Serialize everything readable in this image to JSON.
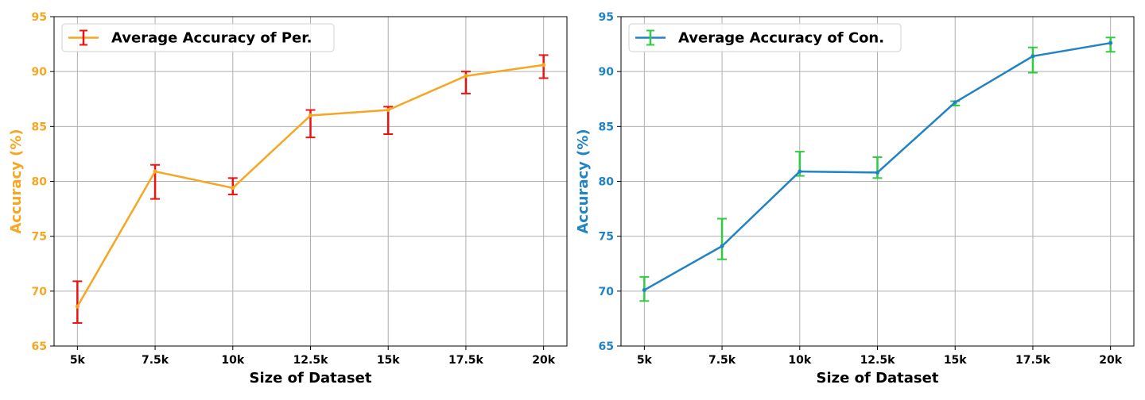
{
  "chart_data": [
    {
      "type": "line",
      "error_bars": true,
      "categories": [
        "5k",
        "7.5k",
        "10k",
        "12.5k",
        "15k",
        "17.5k",
        "20k"
      ],
      "series": [
        {
          "name": "Average Accuracy of Per.",
          "values": [
            68.6,
            80.9,
            79.4,
            86.0,
            86.5,
            89.6,
            90.6
          ],
          "error_low": [
            67.1,
            78.4,
            78.8,
            84.0,
            84.3,
            88.0,
            89.4
          ],
          "error_high": [
            70.9,
            81.5,
            80.3,
            86.5,
            86.8,
            90.0,
            91.5
          ]
        }
      ],
      "xlabel": "Size of Dataset",
      "ylabel": "Accuracy (%)",
      "ylim": [
        65,
        95
      ],
      "yticks": [
        65,
        70,
        75,
        80,
        85,
        90,
        95
      ],
      "grid": true,
      "legend": "upper-left",
      "colors": {
        "line": "#f5a623",
        "error": "#ee1111",
        "ytick": "#f5a623"
      }
    },
    {
      "type": "line",
      "error_bars": true,
      "categories": [
        "5k",
        "7.5k",
        "10k",
        "12.5k",
        "15k",
        "17.5k",
        "20k"
      ],
      "series": [
        {
          "name": "Average Accuracy of Con.",
          "values": [
            70.1,
            74.1,
            80.9,
            80.8,
            87.2,
            91.4,
            92.6
          ],
          "error_low": [
            69.1,
            72.9,
            80.5,
            80.3,
            86.9,
            89.9,
            91.8
          ],
          "error_high": [
            71.3,
            76.6,
            82.7,
            82.2,
            87.3,
            92.2,
            93.1
          ]
        }
      ],
      "xlabel": "Size of Dataset",
      "ylabel": "Accuracy (%)",
      "ylim": [
        65,
        95
      ],
      "yticks": [
        65,
        70,
        75,
        80,
        85,
        90,
        95
      ],
      "grid": true,
      "legend": "upper-left",
      "colors": {
        "line": "#1f83c4",
        "error": "#2ecc40",
        "ytick": "#1f83c4"
      }
    }
  ]
}
